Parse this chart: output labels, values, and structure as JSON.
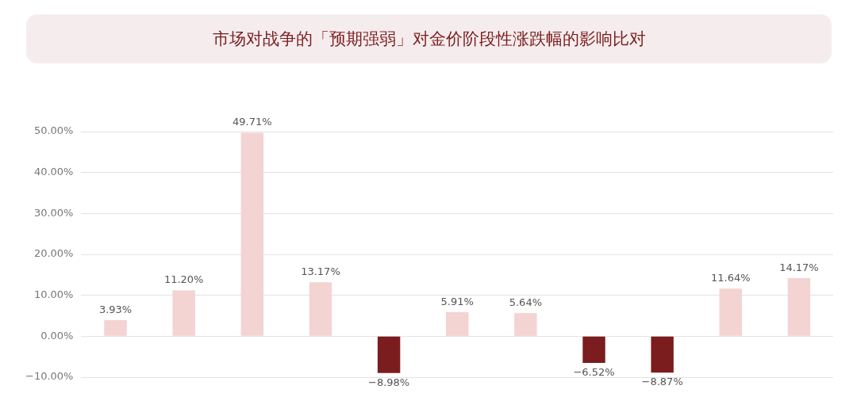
{
  "chart_data": {
    "type": "bar",
    "title": "市场对战争的「预期强弱」对金价阶段性涨跌幅的影响比对",
    "categories": [
      null,
      null,
      null,
      null,
      null,
      null,
      null,
      null,
      null,
      null,
      null
    ],
    "values": [
      3.93,
      11.2,
      49.71,
      13.17,
      -8.98,
      5.91,
      5.64,
      -6.52,
      -8.87,
      11.64,
      14.17
    ],
    "value_labels": [
      "3.93%",
      "11.20%",
      "49.71%",
      "13.17%",
      "−8.98%",
      "5.91%",
      "5.64%",
      "−6.52%",
      "−8.87%",
      "11.64%",
      "14.17%"
    ],
    "colors": [
      "#f4d3d3",
      "#f4d3d3",
      "#f4d3d3",
      "#f4d3d3",
      "#7b1c1f",
      "#f4d3d3",
      "#f4d3d3",
      "#7b1c1f",
      "#7b1c1f",
      "#f4d3d3",
      "#f4d3d3"
    ],
    "ylim": [
      -10,
      50
    ],
    "yticks": [
      {
        "value": -10,
        "label": "−10.00%"
      },
      {
        "value": 0,
        "label": "0.00%"
      },
      {
        "value": 10,
        "label": "10.00%"
      },
      {
        "value": 20,
        "label": "20.00%"
      },
      {
        "value": 30,
        "label": "30.00%"
      },
      {
        "value": 40,
        "label": "40.00%"
      },
      {
        "value": 50,
        "label": "50.00%"
      }
    ],
    "grid": "y",
    "legend": false
  }
}
